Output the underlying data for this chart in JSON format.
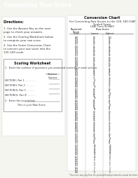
{
  "title": "Computing Your Score",
  "header_bg": "#2d2d2d",
  "header_text_color": "#ffffff",
  "header_fontsize": 5.5,
  "page_bg": "#f5f5f0",
  "body_bg": "#ffffff",
  "directions_title": "Directions:",
  "directions": [
    "1.  Use the Answer Key on the next page to check your answers.",
    "2.  Use the Scoring Worksheet below to compute your raw score.",
    "3.  Use the Score Conversion Chart to convert your raw score into the 120–180 scale."
  ],
  "worksheet_title": "Scoring Worksheet",
  "worksheet_instruction": "1.  Enter the number of questions you answered correctly in each section.",
  "worksheet_label": "Number\nCorrect",
  "worksheet_sections": [
    "SECTION I, Part 1 . . . . . . . .",
    "SECTION II, Part 2 . . . . . . .",
    "SECTION III, Part 3 . . . . . .",
    "SECTION IV, Part 4* . . . . . ."
  ],
  "worksheet_step2": "2.  Enter the sum below:",
  "worksheet_total_label": "This is your Raw Score.",
  "chart_title": "Conversion Chart",
  "chart_subtitle": "For Converting Raw Scores to the 120–180 LSAT\nScaled Score",
  "chart_form": "LSAT Form 9LSN69",
  "chart_col1": "Reported\nScore",
  "chart_col2": "Lowest",
  "chart_col3": "Highest",
  "chart_col2_header": "Raw Score",
  "raw_data": [
    [
      180,
      98,
      101
    ],
    [
      179,
      97,
      97
    ],
    [
      178,
      96,
      96
    ],
    [
      177,
      95,
      95
    ],
    [
      176,
      94,
      94
    ],
    [
      175,
      93,
      93
    ],
    [
      174,
      92,
      92
    ],
    [
      173,
      91,
      91
    ],
    [
      172,
      90,
      90
    ],
    [
      171,
      89,
      89
    ],
    [
      170,
      88,
      88
    ],
    [
      169,
      87,
      87
    ],
    [
      168,
      86,
      86
    ],
    [
      167,
      85,
      85
    ],
    [
      166,
      83,
      84
    ],
    [
      165,
      82,
      82
    ],
    [
      164,
      80,
      81
    ],
    [
      163,
      79,
      79
    ],
    [
      162,
      77,
      78
    ],
    [
      161,
      75,
      76
    ],
    [
      160,
      74,
      74
    ],
    [
      159,
      72,
      73
    ],
    [
      158,
      70,
      71
    ],
    [
      157,
      68,
      69
    ],
    [
      156,
      66,
      67
    ],
    [
      155,
      64,
      65
    ],
    [
      154,
      62,
      63
    ],
    [
      153,
      60,
      61
    ],
    [
      152,
      58,
      59
    ],
    [
      151,
      56,
      57
    ],
    [
      150,
      54,
      55
    ],
    [
      149,
      52,
      53
    ],
    [
      148,
      50,
      51
    ],
    [
      147,
      48,
      49
    ],
    [
      146,
      46,
      47
    ],
    [
      145,
      44,
      45
    ],
    [
      144,
      42,
      43
    ],
    [
      143,
      40,
      41
    ],
    [
      142,
      38,
      39
    ],
    [
      141,
      36,
      37
    ],
    [
      140,
      34,
      35
    ],
    [
      139,
      32,
      33
    ],
    [
      138,
      30,
      31
    ],
    [
      137,
      28,
      29
    ],
    [
      136,
      26,
      27
    ],
    [
      135,
      25,
      25
    ],
    [
      134,
      23,
      24
    ],
    [
      133,
      21,
      22
    ],
    [
      132,
      19,
      20
    ],
    [
      131,
      17,
      18
    ],
    [
      130,
      15,
      16
    ],
    [
      129,
      14,
      14
    ],
    [
      128,
      12,
      13
    ],
    [
      127,
      10,
      11
    ],
    [
      126,
      8,
      9
    ],
    [
      125,
      7,
      7
    ],
    [
      124,
      6,
      6
    ],
    [
      123,
      4,
      5
    ],
    [
      122,
      3,
      3
    ],
    [
      121,
      1,
      2
    ],
    [
      120,
      0,
      0
    ]
  ],
  "footnote": "*Your score may vary from this guide with analysis based on actual test forms"
}
